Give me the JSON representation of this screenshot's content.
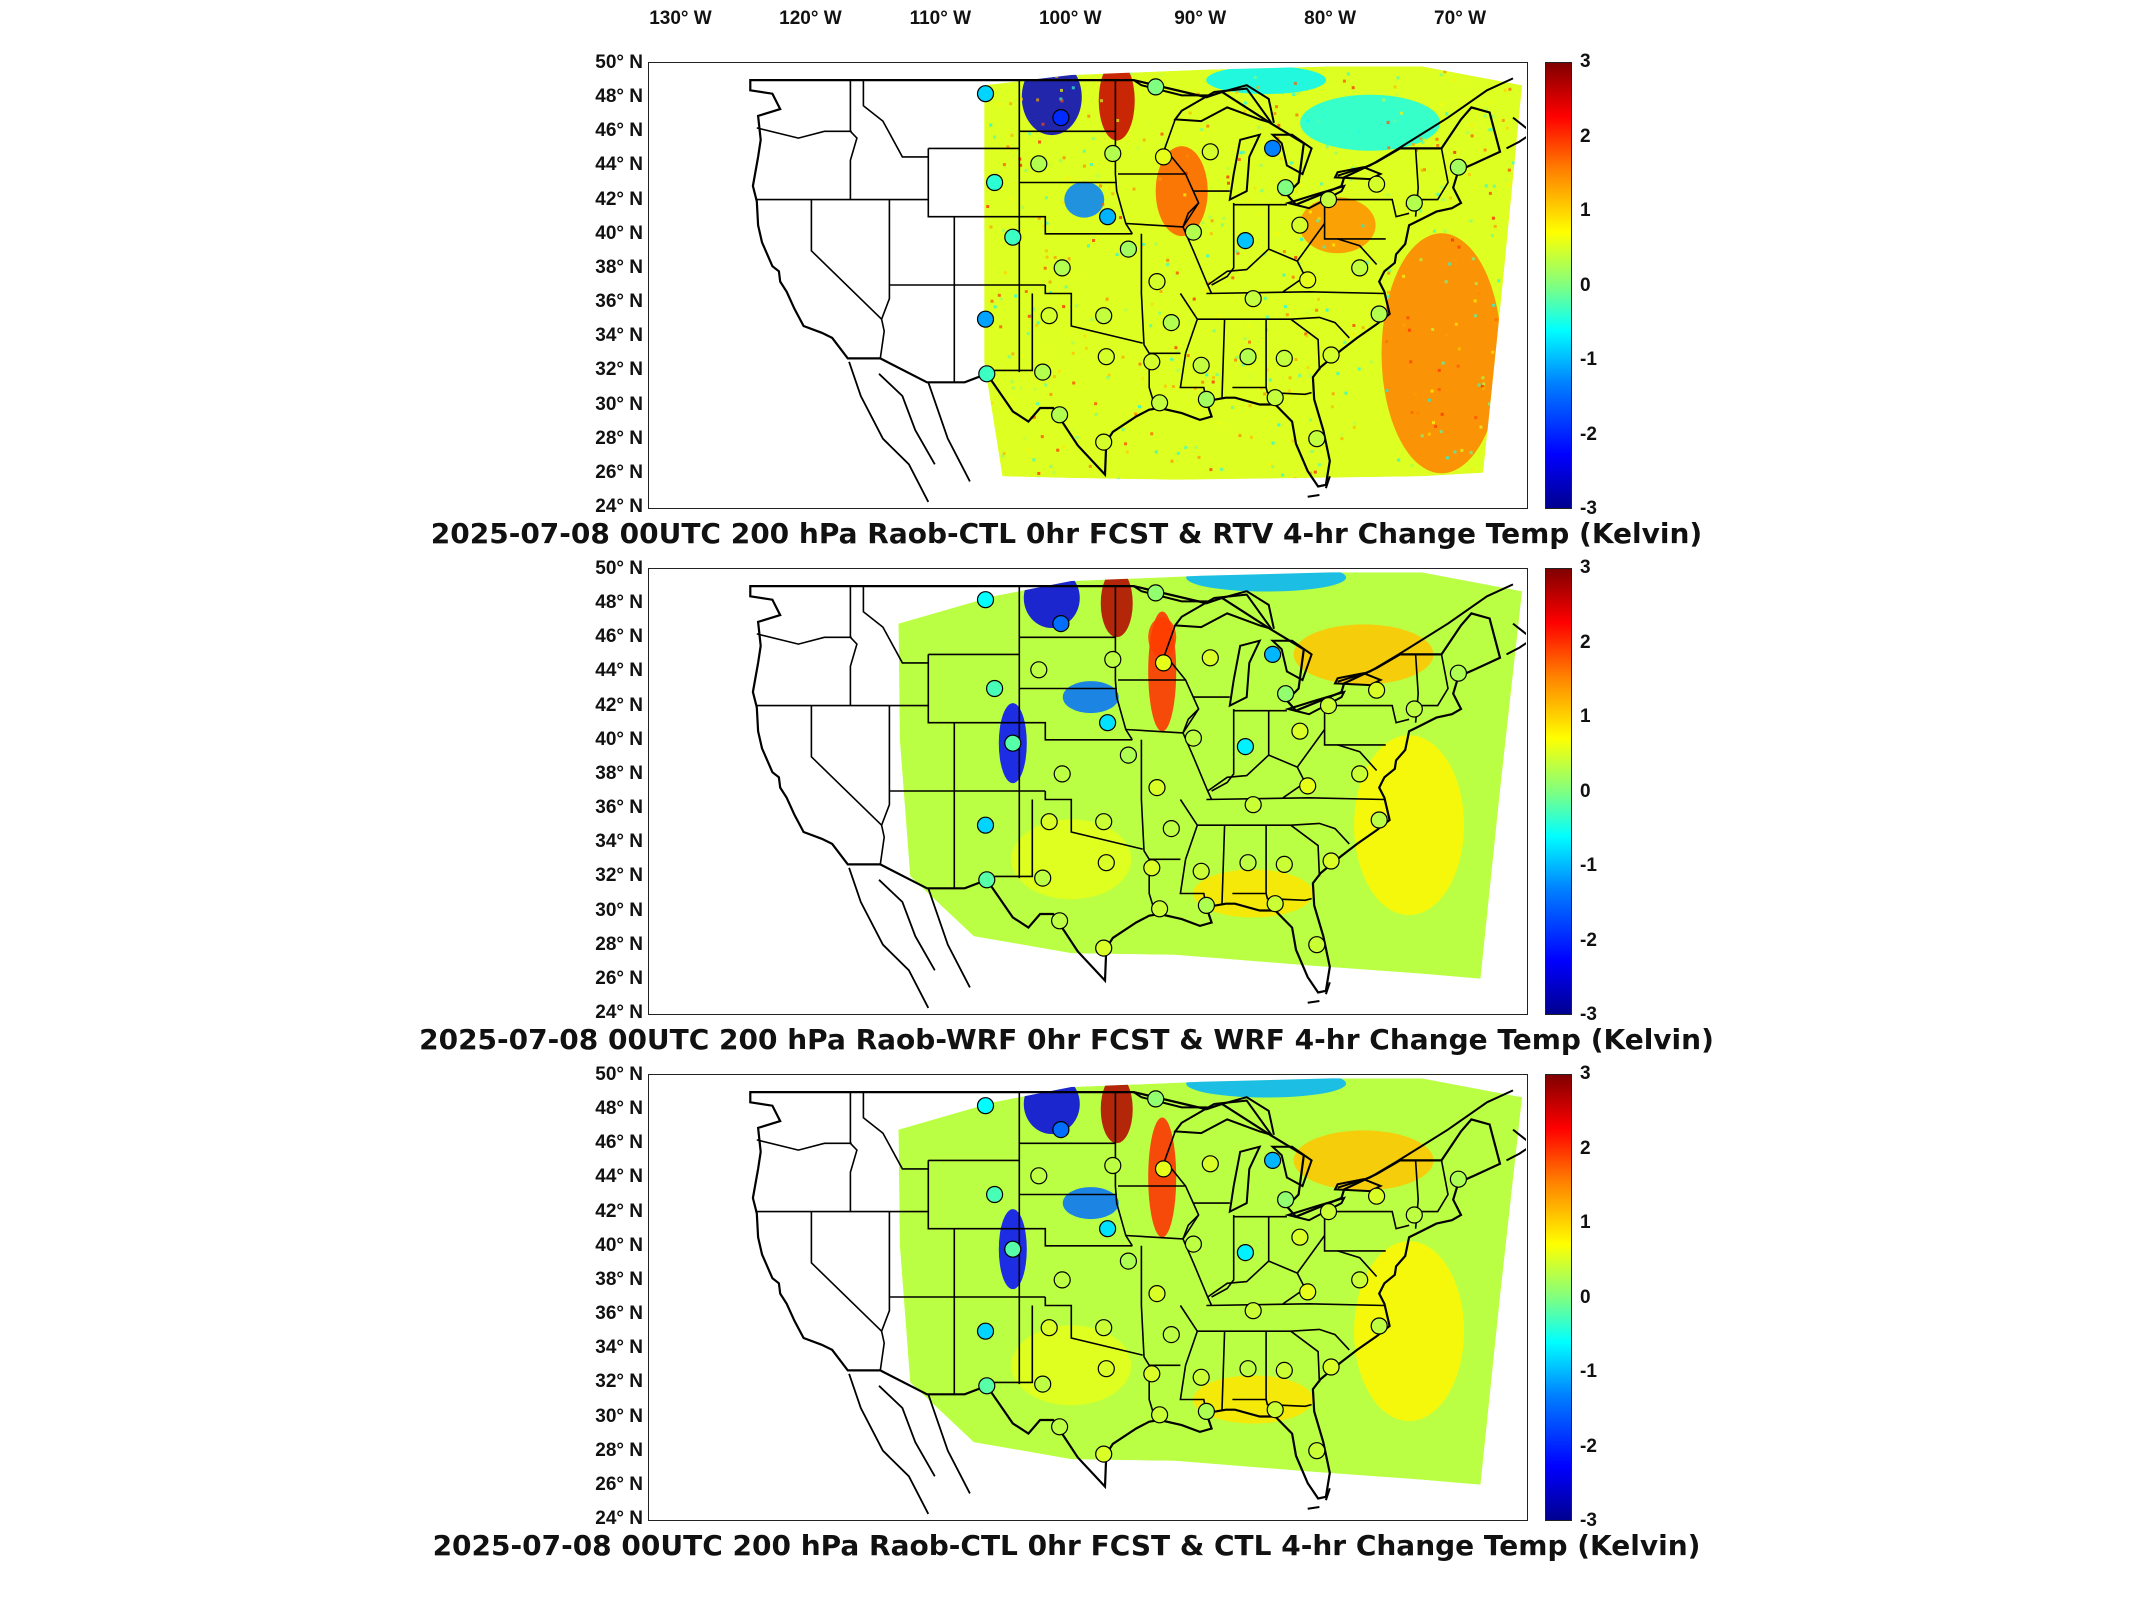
{
  "lon_labels": [
    "130° W",
    "120° W",
    "110° W",
    "100° W",
    "90° W",
    "80° W",
    "70° W"
  ],
  "lat_labels": [
    "50° N",
    "48° N",
    "46° N",
    "44° N",
    "42° N",
    "40° N",
    "38° N",
    "36° N",
    "34° N",
    "32° N",
    "30° N",
    "28° N",
    "26° N",
    "24° N"
  ],
  "colorbar": {
    "min": -3,
    "max": 3,
    "ticks": [
      "3",
      "2",
      "1",
      "0",
      "-1",
      "-2",
      "-3"
    ],
    "colormap": "jet"
  },
  "panels": [
    {
      "title": "2025-07-08 00UTC 200 hPa Raob-CTL 0hr FCST & RTV 4-hr Change Temp (Kelvin)",
      "variant": "rtv"
    },
    {
      "title": "2025-07-08 00UTC 200 hPa Raob-WRF 0hr FCST & WRF 4-hr Change Temp (Kelvin)",
      "variant": "wrf"
    },
    {
      "title": "2025-07-08 00UTC 200 hPa Raob-CTL 0hr FCST & CTL 4-hr Change Temp (Kelvin)",
      "variant": "ctl"
    }
  ],
  "stations": [
    {
      "lon": -106.6,
      "lat": 48.2,
      "v": -1.0
    },
    {
      "lon": -100.8,
      "lat": 46.8,
      "v": -2.0
    },
    {
      "lon": -93.5,
      "lat": 48.6,
      "v": 0.0
    },
    {
      "lon": -105.9,
      "lat": 43.0,
      "v": -0.5
    },
    {
      "lon": -102.5,
      "lat": 44.1,
      "v": 0.3
    },
    {
      "lon": -97.2,
      "lat": 41.0,
      "v": -1.2
    },
    {
      "lon": -96.8,
      "lat": 44.7,
      "v": 0.3
    },
    {
      "lon": -89.3,
      "lat": 44.8,
      "v": 0.5
    },
    {
      "lon": -84.5,
      "lat": 45.0,
      "v": -1.5
    },
    {
      "lon": -83.5,
      "lat": 42.7,
      "v": 0.0
    },
    {
      "lon": -92.9,
      "lat": 44.5,
      "v": 0.6
    },
    {
      "lon": -90.6,
      "lat": 40.1,
      "v": 0.3
    },
    {
      "lon": -104.5,
      "lat": 39.8,
      "v": -0.4
    },
    {
      "lon": -100.7,
      "lat": 38.0,
      "v": 0.3
    },
    {
      "lon": -95.6,
      "lat": 39.1,
      "v": 0.2
    },
    {
      "lon": -93.4,
      "lat": 37.2,
      "v": 0.5
    },
    {
      "lon": -86.6,
      "lat": 39.6,
      "v": -1.1
    },
    {
      "lon": -82.4,
      "lat": 40.5,
      "v": 0.5
    },
    {
      "lon": -80.2,
      "lat": 42.0,
      "v": 0.4
    },
    {
      "lon": -76.5,
      "lat": 42.9,
      "v": 0.5
    },
    {
      "lon": -73.6,
      "lat": 41.8,
      "v": 0.3
    },
    {
      "lon": -70.2,
      "lat": 43.9,
      "v": 0.2
    },
    {
      "lon": -106.6,
      "lat": 35.0,
      "v": -1.3
    },
    {
      "lon": -101.7,
      "lat": 35.2,
      "v": 0.5
    },
    {
      "lon": -97.5,
      "lat": 35.2,
      "v": 0.4
    },
    {
      "lon": -92.3,
      "lat": 34.8,
      "v": 0.3
    },
    {
      "lon": -86.0,
      "lat": 36.2,
      "v": 0.4
    },
    {
      "lon": -81.8,
      "lat": 37.3,
      "v": 0.6
    },
    {
      "lon": -77.8,
      "lat": 38.0,
      "v": 0.4
    },
    {
      "lon": -76.3,
      "lat": 35.3,
      "v": 0.3
    },
    {
      "lon": -106.5,
      "lat": 31.8,
      "v": -0.4
    },
    {
      "lon": -102.2,
      "lat": 31.9,
      "v": 0.3
    },
    {
      "lon": -97.3,
      "lat": 32.8,
      "v": 0.5
    },
    {
      "lon": -93.8,
      "lat": 32.5,
      "v": 0.5
    },
    {
      "lon": -90.0,
      "lat": 32.3,
      "v": 0.4
    },
    {
      "lon": -86.4,
      "lat": 32.8,
      "v": 0.3
    },
    {
      "lon": -83.6,
      "lat": 32.7,
      "v": 0.4
    },
    {
      "lon": -80.0,
      "lat": 32.9,
      "v": 0.5
    },
    {
      "lon": -100.9,
      "lat": 29.4,
      "v": 0.3
    },
    {
      "lon": -93.2,
      "lat": 30.1,
      "v": 0.4
    },
    {
      "lon": -89.6,
      "lat": 30.3,
      "v": 0.2
    },
    {
      "lon": -84.3,
      "lat": 30.4,
      "v": 0.4
    },
    {
      "lon": -97.5,
      "lat": 27.8,
      "v": 0.5
    },
    {
      "lon": -81.1,
      "lat": 28.0,
      "v": 0.4
    }
  ]
}
